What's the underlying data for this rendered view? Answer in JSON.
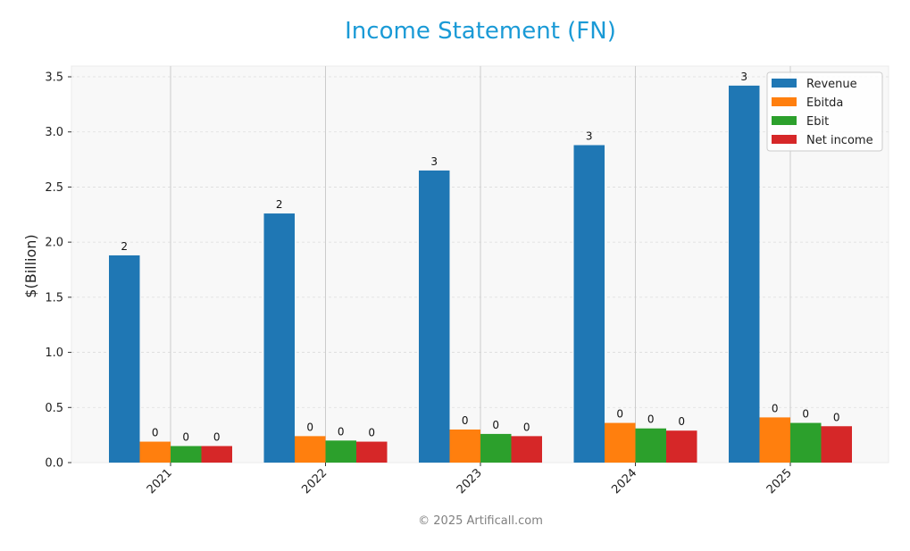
{
  "chart_data": {
    "type": "bar",
    "title": "Income Statement (FN)",
    "xlabel": "",
    "ylabel": "$(Billion)",
    "ylim": [
      0,
      3.6
    ],
    "yticks": [
      0.0,
      0.5,
      1.0,
      1.5,
      2.0,
      2.5,
      3.0,
      3.5
    ],
    "ytick_labels": [
      "0.0",
      "0.5",
      "1.0",
      "1.5",
      "2.0",
      "2.5",
      "3.0",
      "3.5"
    ],
    "categories": [
      "2021",
      "2022",
      "2023",
      "2024",
      "2025"
    ],
    "grid": true,
    "legend_position": "upper right",
    "series": [
      {
        "name": "Revenue",
        "color": "#1f77b4",
        "values": [
          1.88,
          2.26,
          2.65,
          2.88,
          3.42
        ],
        "labels": [
          "2",
          "2",
          "3",
          "3",
          "3"
        ]
      },
      {
        "name": "Ebitda",
        "color": "#ff7f0e",
        "values": [
          0.19,
          0.24,
          0.3,
          0.36,
          0.41
        ],
        "labels": [
          "0",
          "0",
          "0",
          "0",
          "0"
        ]
      },
      {
        "name": "Ebit",
        "color": "#2ca02c",
        "values": [
          0.15,
          0.2,
          0.26,
          0.31,
          0.36
        ],
        "labels": [
          "0",
          "0",
          "0",
          "0",
          "0"
        ]
      },
      {
        "name": "Net income",
        "color": "#d62728",
        "values": [
          0.15,
          0.19,
          0.24,
          0.29,
          0.33
        ],
        "labels": [
          "0",
          "0",
          "0",
          "0",
          "0"
        ]
      }
    ]
  },
  "footer": "© 2025 Artificall.com"
}
